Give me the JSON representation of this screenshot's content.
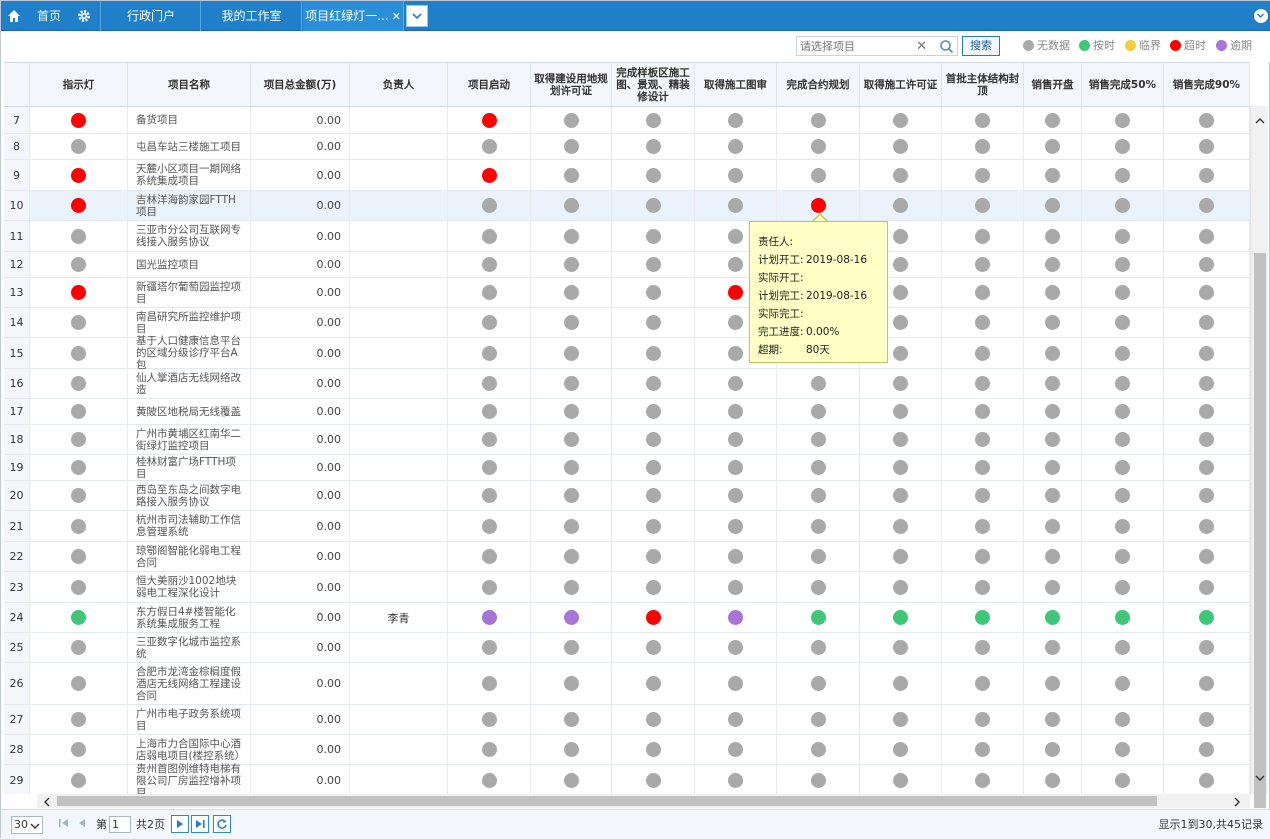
{
  "tabs": [
    {
      "label": "首页",
      "icon": "home-icon"
    },
    {
      "label": "行政门户"
    },
    {
      "label": "我的工作室"
    },
    {
      "label": "项目红绿灯一...",
      "closable": true,
      "active": true
    }
  ],
  "toolbar": {
    "search_placeholder": "请选择项目",
    "search_button": "搜索",
    "legend": [
      {
        "label": "无数据",
        "color": "#a9a9a9"
      },
      {
        "label": "按时",
        "color": "#3ec776"
      },
      {
        "label": "临界",
        "color": "#f5cd3c"
      },
      {
        "label": "超时",
        "color": "#ff0000"
      },
      {
        "label": "逾期",
        "color": "#a874d8"
      }
    ]
  },
  "columns": [
    "指示灯",
    "项目名称",
    "项目总金额(万)",
    "负责人",
    "项目启动",
    "取得建设用地规划许可证",
    "完成样板区施工图、景观、精装修设计",
    "取得施工图审",
    "完成合约规划",
    "取得施工许可证",
    "首批主体结构封顶",
    "销售开盘",
    "销售完成50%",
    "销售完成90%"
  ],
  "rows": [
    {
      "no": "7",
      "light": "red",
      "name": "备货项目",
      "amount": "0.00",
      "owner": "",
      "s": [
        "red",
        "gray",
        "gray",
        "gray",
        "gray",
        "gray",
        "gray",
        "gray",
        "gray",
        "gray"
      ]
    },
    {
      "no": "8",
      "light": "gray",
      "name": "屯昌车站三楼施工项目",
      "amount": "0.00",
      "owner": "",
      "s": [
        "gray",
        "gray",
        "gray",
        "gray",
        "gray",
        "gray",
        "gray",
        "gray",
        "gray",
        "gray"
      ]
    },
    {
      "no": "9",
      "light": "red",
      "name": "天麓小区项目一期网络系统集成项目",
      "amount": "0.00",
      "owner": "",
      "s": [
        "red",
        "gray",
        "gray",
        "gray",
        "gray",
        "gray",
        "gray",
        "gray",
        "gray",
        "gray"
      ]
    },
    {
      "no": "10",
      "light": "red",
      "name": "吉林洋海韵家园FTTH项目",
      "amount": "0.00",
      "owner": "",
      "s": [
        "gray",
        "gray",
        "gray",
        "gray",
        "red",
        "gray",
        "gray",
        "gray",
        "gray",
        "gray"
      ],
      "highlight": true
    },
    {
      "no": "11",
      "light": "gray",
      "name": "三亚市分公司互联网专线接入服务协议",
      "amount": "0.00",
      "owner": "",
      "s": [
        "gray",
        "gray",
        "gray",
        "gray",
        "",
        "gray",
        "gray",
        "gray",
        "gray",
        "gray"
      ]
    },
    {
      "no": "12",
      "light": "gray",
      "name": "国光监控项目",
      "amount": "0.00",
      "owner": "",
      "s": [
        "gray",
        "gray",
        "gray",
        "gray",
        "",
        "gray",
        "gray",
        "gray",
        "gray",
        "gray"
      ]
    },
    {
      "no": "13",
      "light": "red",
      "name": "新疆塔尔葡萄园监控项目",
      "amount": "0.00",
      "owner": "",
      "s": [
        "gray",
        "gray",
        "gray",
        "red",
        "",
        "gray",
        "gray",
        "gray",
        "gray",
        "gray"
      ]
    },
    {
      "no": "14",
      "light": "gray",
      "name": "南昌研究所监控维护项目",
      "amount": "0.00",
      "owner": "",
      "s": [
        "gray",
        "gray",
        "gray",
        "gray",
        "",
        "gray",
        "gray",
        "gray",
        "gray",
        "gray"
      ]
    },
    {
      "no": "15",
      "light": "gray",
      "name": "基于人口健康信息平台的区域分级诊疗平台A包",
      "amount": "0.00",
      "owner": "",
      "s": [
        "gray",
        "gray",
        "gray",
        "gray",
        "",
        "gray",
        "gray",
        "gray",
        "gray",
        "gray"
      ]
    },
    {
      "no": "16",
      "light": "gray",
      "name": "仙人掌酒店无线网络改造",
      "amount": "0.00",
      "owner": "",
      "s": [
        "gray",
        "gray",
        "gray",
        "gray",
        "gray",
        "gray",
        "gray",
        "gray",
        "gray",
        "gray"
      ]
    },
    {
      "no": "17",
      "light": "gray",
      "name": "黄陂区地税局无线覆盖",
      "amount": "0.00",
      "owner": "",
      "s": [
        "gray",
        "gray",
        "gray",
        "gray",
        "gray",
        "gray",
        "gray",
        "gray",
        "gray",
        "gray"
      ]
    },
    {
      "no": "18",
      "light": "gray",
      "name": "广州市黄埔区红南华二街绿灯监控项目",
      "amount": "0.00",
      "owner": "",
      "s": [
        "gray",
        "gray",
        "gray",
        "gray",
        "gray",
        "gray",
        "gray",
        "gray",
        "gray",
        "gray"
      ]
    },
    {
      "no": "19",
      "light": "gray",
      "name": "桂林财富广场FTTH项目",
      "amount": "0.00",
      "owner": "",
      "s": [
        "gray",
        "gray",
        "gray",
        "gray",
        "gray",
        "gray",
        "gray",
        "gray",
        "gray",
        "gray"
      ]
    },
    {
      "no": "20",
      "light": "gray",
      "name": "西岛至东岛之间数字电路接入服务协议",
      "amount": "0.00",
      "owner": "",
      "s": [
        "gray",
        "gray",
        "gray",
        "gray",
        "gray",
        "gray",
        "gray",
        "gray",
        "gray",
        "gray"
      ]
    },
    {
      "no": "21",
      "light": "gray",
      "name": "杭州市司法辅助工作信息管理系统",
      "amount": "0.00",
      "owner": "",
      "s": [
        "gray",
        "gray",
        "gray",
        "gray",
        "gray",
        "gray",
        "gray",
        "gray",
        "gray",
        "gray"
      ]
    },
    {
      "no": "22",
      "light": "gray",
      "name": "琼鄂阁智能化弱电工程合同",
      "amount": "0.00",
      "owner": "",
      "s": [
        "gray",
        "gray",
        "gray",
        "gray",
        "gray",
        "gray",
        "gray",
        "gray",
        "gray",
        "gray"
      ]
    },
    {
      "no": "23",
      "light": "gray",
      "name": "恒大美丽沙1002地块弱电工程深化设计",
      "amount": "0.00",
      "owner": "",
      "s": [
        "gray",
        "gray",
        "gray",
        "gray",
        "gray",
        "gray",
        "gray",
        "gray",
        "gray",
        "gray"
      ]
    },
    {
      "no": "24",
      "light": "green",
      "name": "东方假日4#楼智能化系统集成服务工程",
      "amount": "0.00",
      "owner": "李青",
      "s": [
        "purple",
        "purple",
        "red",
        "purple",
        "green",
        "green",
        "green",
        "green",
        "green",
        "green"
      ]
    },
    {
      "no": "25",
      "light": "gray",
      "name": "三亚数字化城市监控系统",
      "amount": "0.00",
      "owner": "",
      "s": [
        "gray",
        "gray",
        "gray",
        "gray",
        "gray",
        "gray",
        "gray",
        "gray",
        "gray",
        "gray"
      ]
    },
    {
      "no": "26",
      "light": "gray",
      "name": "合肥市龙湾金棕榈度假酒店无线网络工程建设合同",
      "amount": "0.00",
      "owner": "",
      "s": [
        "gray",
        "gray",
        "gray",
        "gray",
        "gray",
        "gray",
        "gray",
        "gray",
        "gray",
        "gray"
      ]
    },
    {
      "no": "27",
      "light": "gray",
      "name": "广州市电子政务系统项目",
      "amount": "0.00",
      "owner": "",
      "s": [
        "gray",
        "gray",
        "gray",
        "gray",
        "gray",
        "gray",
        "gray",
        "gray",
        "gray",
        "gray"
      ]
    },
    {
      "no": "28",
      "light": "gray",
      "name": "上海市力合国际中心酒店弱电项目(楼控系统）",
      "amount": "0.00",
      "owner": "",
      "s": [
        "gray",
        "gray",
        "gray",
        "gray",
        "gray",
        "gray",
        "gray",
        "gray",
        "gray",
        "gray"
      ]
    },
    {
      "no": "29",
      "light": "gray",
      "name": "贵州首图例维特电梯有限公司厂房监控增补项目",
      "amount": "0.00",
      "owner": "",
      "s": [
        "gray",
        "gray",
        "gray",
        "gray",
        "gray",
        "gray",
        "gray",
        "gray",
        "gray",
        "gray"
      ]
    }
  ],
  "tooltip": {
    "rows": [
      {
        "k": "责任人:",
        "v": ""
      },
      {
        "k": "计划开工:",
        "v": "2019-08-16"
      },
      {
        "k": "实际开工:",
        "v": ""
      },
      {
        "k": "计划完工:",
        "v": "2019-08-16"
      },
      {
        "k": "实际完工:",
        "v": ""
      },
      {
        "k": "完工进度:",
        "v": "0.00%"
      },
      {
        "k": "超期:",
        "v": "80天"
      }
    ]
  },
  "pager": {
    "page_size": "30",
    "page_prefix": "第",
    "current_page": "1",
    "total_pages": "共2页",
    "info": "显示1到30,共45记录"
  },
  "colors": {
    "gray": "#a9a9a9",
    "red": "#ff0000",
    "green": "#3ec776",
    "purple": "#a874d8",
    "yellow": "#f5cd3c"
  }
}
